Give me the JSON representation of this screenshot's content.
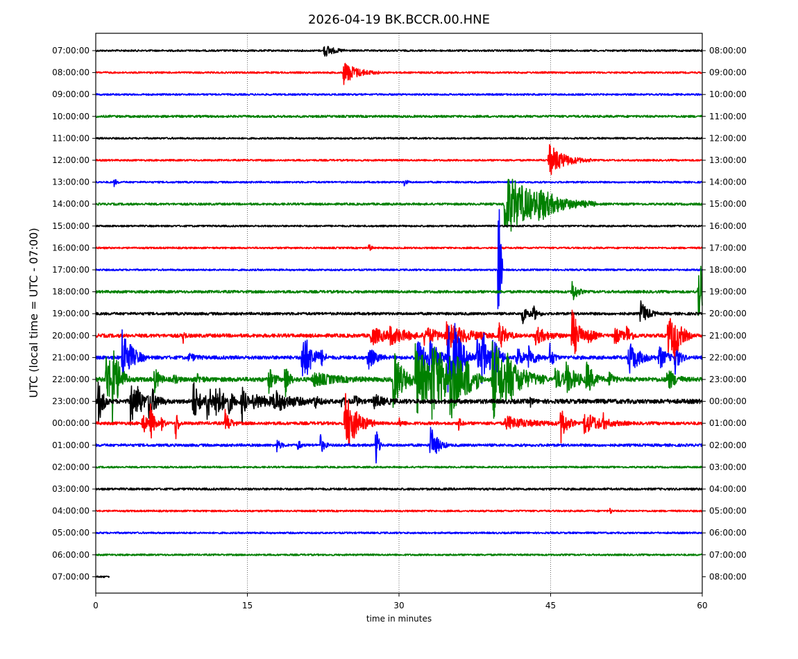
{
  "chart_data": {
    "type": "line",
    "title": "2026-04-19 BK.BCCR.00.HNE",
    "xlabel": "time in minutes",
    "ylabel": "UTC (local time = UTC - 07:00)",
    "xlim": [
      0,
      60
    ],
    "xticks": [
      0,
      15,
      30,
      45,
      60
    ],
    "grid": "vertical dotted at 15, 30, 45",
    "line_colors": [
      "#000000",
      "#ff0000",
      "#0000ff",
      "#008000"
    ],
    "left_labels": [
      "07:00:00",
      "08:00:00",
      "09:00:00",
      "10:00:00",
      "11:00:00",
      "12:00:00",
      "13:00:00",
      "14:00:00",
      "15:00:00",
      "16:00:00",
      "17:00:00",
      "18:00:00",
      "19:00:00",
      "20:00:00",
      "21:00:00",
      "22:00:00",
      "23:00:00",
      "00:00:00",
      "01:00:00",
      "02:00:00",
      "03:00:00",
      "04:00:00",
      "05:00:00",
      "06:00:00",
      "07:00:00"
    ],
    "right_labels": [
      "08:00:00",
      "09:00:00",
      "10:00:00",
      "11:00:00",
      "12:00:00",
      "13:00:00",
      "14:00:00",
      "15:00:00",
      "16:00:00",
      "17:00:00",
      "18:00:00",
      "19:00:00",
      "20:00:00",
      "21:00:00",
      "22:00:00",
      "23:00:00",
      "00:00:00",
      "01:00:00",
      "02:00:00",
      "03:00:00",
      "04:00:00",
      "05:00:00",
      "06:00:00",
      "07:00:00",
      "08:00:00"
    ],
    "series": [
      {
        "start": 0,
        "end": 60,
        "noise": 0.04,
        "events": [
          [
            22.6,
            0.8,
            0.3
          ]
        ]
      },
      {
        "start": 0,
        "end": 60,
        "noise": 0.04,
        "events": [
          [
            24.5,
            1.2,
            0.55
          ]
        ]
      },
      {
        "start": 0,
        "end": 60,
        "noise": 0.04,
        "events": []
      },
      {
        "start": 0,
        "end": 60,
        "noise": 0.05,
        "events": []
      },
      {
        "start": 0,
        "end": 60,
        "noise": 0.04,
        "events": []
      },
      {
        "start": 0,
        "end": 60,
        "noise": 0.04,
        "events": [
          [
            44.8,
            1.4,
            0.75
          ]
        ]
      },
      {
        "start": 0,
        "end": 60,
        "noise": 0.04,
        "events": [
          [
            1.8,
            0.2,
            0.2
          ],
          [
            30.5,
            0.2,
            0.2
          ]
        ]
      },
      {
        "start": 0,
        "end": 60,
        "noise": 0.05,
        "events": [
          [
            40.4,
            3.0,
            1.5
          ],
          [
            43.8,
            1.0,
            0.4
          ]
        ]
      },
      {
        "start": 0,
        "end": 60,
        "noise": 0.04,
        "events": []
      },
      {
        "start": 0,
        "end": 60,
        "noise": 0.04,
        "events": [
          [
            27,
            0.2,
            0.2
          ]
        ]
      },
      {
        "start": 0,
        "end": 60,
        "noise": 0.04,
        "events": [
          [
            39.8,
            0.15,
            8.5
          ]
        ]
      },
      {
        "start": 0,
        "end": 60,
        "noise": 0.06,
        "events": [
          [
            47.1,
            0.4,
            0.6
          ],
          [
            59.6,
            1.5,
            1.5
          ]
        ]
      },
      {
        "start": 0,
        "end": 60,
        "noise": 0.06,
        "events": [
          [
            42.2,
            0.4,
            0.5
          ],
          [
            43.2,
            0.4,
            0.4
          ],
          [
            53.9,
            0.6,
            0.6
          ]
        ]
      },
      {
        "start": 0,
        "end": 60,
        "noise": 0.08,
        "events": [
          [
            8.6,
            0.15,
            0.4
          ],
          [
            27.2,
            1.5,
            0.4
          ],
          [
            29.0,
            1.5,
            0.35
          ],
          [
            32.5,
            1.5,
            0.35
          ],
          [
            34.7,
            2.0,
            0.5
          ],
          [
            39.9,
            0.6,
            0.6
          ],
          [
            43.5,
            1.0,
            0.4
          ],
          [
            47.1,
            0.6,
            1.3
          ],
          [
            48.7,
            0.5,
            0.4
          ],
          [
            51.3,
            0.7,
            0.4
          ],
          [
            52.5,
            0.4,
            0.4
          ],
          [
            56.6,
            0.8,
            1.0
          ],
          [
            57.2,
            0.5,
            0.8
          ]
        ]
      },
      {
        "start": 0,
        "end": 60,
        "noise": 0.08,
        "events": [
          [
            2.6,
            0.8,
            1.5
          ],
          [
            9.2,
            0.5,
            0.2
          ],
          [
            20.4,
            0.8,
            1.4
          ],
          [
            22.3,
            0.2,
            0.3
          ],
          [
            26.9,
            0.6,
            0.6
          ],
          [
            31.8,
            0.8,
            1.0
          ],
          [
            33.0,
            0.8,
            0.8
          ],
          [
            34.8,
            1.0,
            1.5
          ],
          [
            35.5,
            0.6,
            0.8
          ],
          [
            37.7,
            0.7,
            0.8
          ],
          [
            38.2,
            0.8,
            1.0
          ],
          [
            39.3,
            0.4,
            1.2
          ],
          [
            41.6,
            0.5,
            0.6
          ],
          [
            42.8,
            0.6,
            0.5
          ],
          [
            44.9,
            0.3,
            0.7
          ],
          [
            52.7,
            0.9,
            0.8
          ],
          [
            55.7,
            0.6,
            0.6
          ],
          [
            57.3,
            0.4,
            0.7
          ]
        ]
      },
      {
        "start": 0,
        "end": 60,
        "noise": 0.1,
        "events": [
          [
            1.0,
            0.8,
            1.3
          ],
          [
            1.6,
            0.5,
            1.6
          ],
          [
            5.8,
            0.4,
            0.6
          ],
          [
            7.7,
            0.3,
            0.2
          ],
          [
            10.0,
            0.4,
            0.2
          ],
          [
            17.1,
            0.4,
            0.6
          ],
          [
            18.7,
            0.3,
            1.0
          ],
          [
            21.5,
            1.8,
            0.3
          ],
          [
            29.4,
            0.9,
            1.4
          ],
          [
            31.6,
            1.8,
            1.6
          ],
          [
            33.2,
            1.5,
            1.3
          ],
          [
            35.0,
            1.0,
            1.4
          ],
          [
            36.6,
            0.5,
            0.6
          ],
          [
            37.6,
            0.3,
            0.5
          ],
          [
            39.2,
            1.8,
            1.9
          ],
          [
            40.7,
            0.7,
            0.4
          ],
          [
            45.4,
            0.9,
            0.5
          ],
          [
            46.5,
            0.9,
            0.6
          ],
          [
            48.5,
            0.6,
            0.8
          ],
          [
            50.8,
            0.3,
            0.5
          ],
          [
            56.5,
            0.6,
            0.6
          ]
        ]
      },
      {
        "start": 0,
        "end": 60,
        "noise": 0.1,
        "events": [
          [
            0.2,
            0.4,
            1.2
          ],
          [
            3.4,
            0.4,
            1.4
          ],
          [
            4.0,
            0.8,
            0.6
          ],
          [
            5.2,
            0.6,
            0.8
          ],
          [
            9.6,
            0.5,
            1.1
          ],
          [
            10.9,
            0.5,
            1.1
          ],
          [
            11.8,
            0.7,
            0.9
          ],
          [
            13.0,
            0.5,
            0.5
          ],
          [
            14.4,
            0.3,
            1.2
          ],
          [
            15.5,
            1.8,
            0.3
          ],
          [
            17.6,
            1.5,
            0.4
          ],
          [
            21.6,
            0.4,
            0.3
          ],
          [
            24.3,
            0.3,
            0.2
          ],
          [
            25.6,
            0.3,
            0.3
          ],
          [
            27.5,
            0.8,
            0.3
          ],
          [
            43.0,
            0.2,
            0.2
          ]
        ]
      },
      {
        "start": 0,
        "end": 60,
        "noise": 0.07,
        "events": [
          [
            4.6,
            0.5,
            0.5
          ],
          [
            5.4,
            0.3,
            0.8
          ],
          [
            6.5,
            0.2,
            0.4
          ],
          [
            7.9,
            0.2,
            0.9
          ],
          [
            12.8,
            0.4,
            0.6
          ],
          [
            24.6,
            1.0,
            1.6
          ],
          [
            30.0,
            0.3,
            0.2
          ],
          [
            35.9,
            0.2,
            0.3
          ],
          [
            40.5,
            2.0,
            0.3
          ],
          [
            46.0,
            0.5,
            0.9
          ],
          [
            48.3,
            1.5,
            0.5
          ],
          [
            50.2,
            0.2,
            0.3
          ]
        ]
      },
      {
        "start": 0,
        "end": 60,
        "noise": 0.06,
        "events": [
          [
            17.9,
            0.3,
            0.3
          ],
          [
            20.0,
            0.2,
            0.3
          ],
          [
            22.2,
            0.3,
            0.5
          ],
          [
            27.7,
            0.2,
            1.3
          ],
          [
            33.1,
            0.6,
            0.9
          ]
        ]
      },
      {
        "start": 0,
        "end": 60,
        "noise": 0.04,
        "events": []
      },
      {
        "start": 0,
        "end": 60,
        "noise": 0.05,
        "events": []
      },
      {
        "start": 0,
        "end": 60,
        "noise": 0.04,
        "events": [
          [
            50.9,
            0.1,
            0.2
          ]
        ]
      },
      {
        "start": 0,
        "end": 60,
        "noise": 0.04,
        "events": []
      },
      {
        "start": 0,
        "end": 60,
        "noise": 0.04,
        "events": []
      },
      {
        "start": 0,
        "end": 1.4,
        "noise": 0.04,
        "events": []
      }
    ]
  }
}
